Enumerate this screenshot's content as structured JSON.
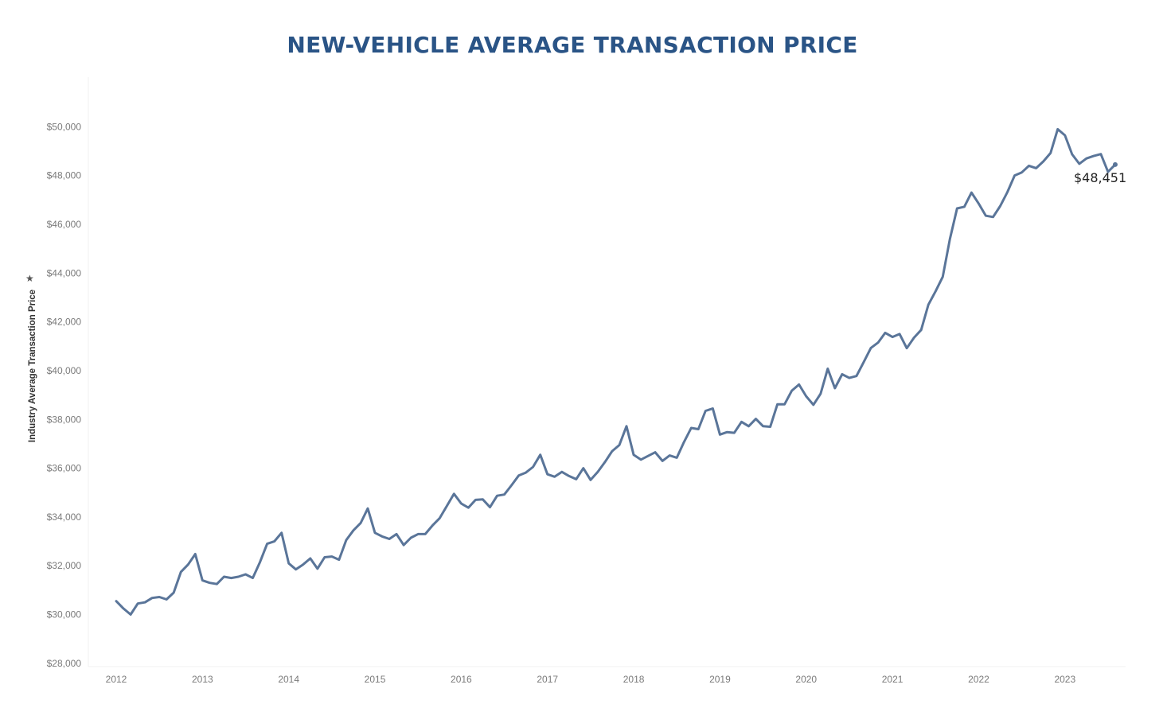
{
  "chart_title": "NEW-VEHICLE AVERAGE TRANSACTION PRICE",
  "chart_data": {
    "type": "line",
    "title": "NEW-VEHICLE AVERAGE TRANSACTION PRICE",
    "xlabel": "",
    "ylabel": "Industry Average Transaction Price",
    "ylim": [
      27800,
      52000
    ],
    "xlim": [
      2011.65,
      2023.7
    ],
    "grid": false,
    "y_ticks": [
      {
        "value": 28000,
        "label": "$28,000"
      },
      {
        "value": 30000,
        "label": "$30,000"
      },
      {
        "value": 32000,
        "label": "$32,000"
      },
      {
        "value": 34000,
        "label": "$34,000"
      },
      {
        "value": 36000,
        "label": "$36,000"
      },
      {
        "value": 38000,
        "label": "$38,000"
      },
      {
        "value": 40000,
        "label": "$40,000"
      },
      {
        "value": 42000,
        "label": "$42,000"
      },
      {
        "value": 44000,
        "label": "$44,000"
      },
      {
        "value": 46000,
        "label": "$46,000"
      },
      {
        "value": 48000,
        "label": "$48,000"
      },
      {
        "value": 50000,
        "label": "$50,000"
      }
    ],
    "x_ticks": [
      {
        "value": 2012,
        "label": "2012"
      },
      {
        "value": 2013,
        "label": "2013"
      },
      {
        "value": 2014,
        "label": "2014"
      },
      {
        "value": 2015,
        "label": "2015"
      },
      {
        "value": 2016,
        "label": "2016"
      },
      {
        "value": 2017,
        "label": "2017"
      },
      {
        "value": 2018,
        "label": "2018"
      },
      {
        "value": 2019,
        "label": "2019"
      },
      {
        "value": 2020,
        "label": "2020"
      },
      {
        "value": 2021,
        "label": "2021"
      },
      {
        "value": 2022,
        "label": "2022"
      },
      {
        "value": 2023,
        "label": "2023"
      }
    ],
    "series": [
      {
        "color": "#5a7599",
        "x_start": 2012.0,
        "x_step": 0.08333,
        "values": [
          30550,
          30250,
          30000,
          30450,
          30500,
          30680,
          30720,
          30620,
          30900,
          31750,
          32050,
          32480,
          31400,
          31300,
          31250,
          31550,
          31500,
          31550,
          31650,
          31500,
          32150,
          32900,
          33000,
          33350,
          32100,
          31850,
          32050,
          32300,
          31880,
          32350,
          32380,
          32250,
          33050,
          33450,
          33750,
          34350,
          33350,
          33200,
          33100,
          33300,
          32850,
          33150,
          33300,
          33300,
          33650,
          33950,
          34450,
          34950,
          34550,
          34380,
          34700,
          34720,
          34400,
          34870,
          34920,
          35300,
          35700,
          35820,
          36050,
          36550,
          35750,
          35650,
          35850,
          35680,
          35550,
          36000,
          35520,
          35850,
          36250,
          36700,
          36950,
          37720,
          36550,
          36350,
          36500,
          36650,
          36300,
          36520,
          36430,
          37070,
          37650,
          37600,
          38350,
          38450,
          37380,
          37480,
          37450,
          37900,
          37720,
          38020,
          37720,
          37700,
          38620,
          38620,
          39180,
          39430,
          38950,
          38600,
          39050,
          40080,
          39280,
          39850,
          39700,
          39780,
          40350,
          40930,
          41150,
          41550,
          41380,
          41500,
          40920,
          41350,
          41670,
          42700,
          43250,
          43850,
          45400,
          46650,
          46720,
          47300,
          46850,
          46350,
          46300,
          46750,
          47320,
          48000,
          48130,
          48400,
          48300,
          48580,
          48920,
          49900,
          49650,
          48870,
          48480,
          48700,
          48800,
          48880,
          48150,
          48451
        ]
      }
    ],
    "end_label": "$48,451"
  }
}
